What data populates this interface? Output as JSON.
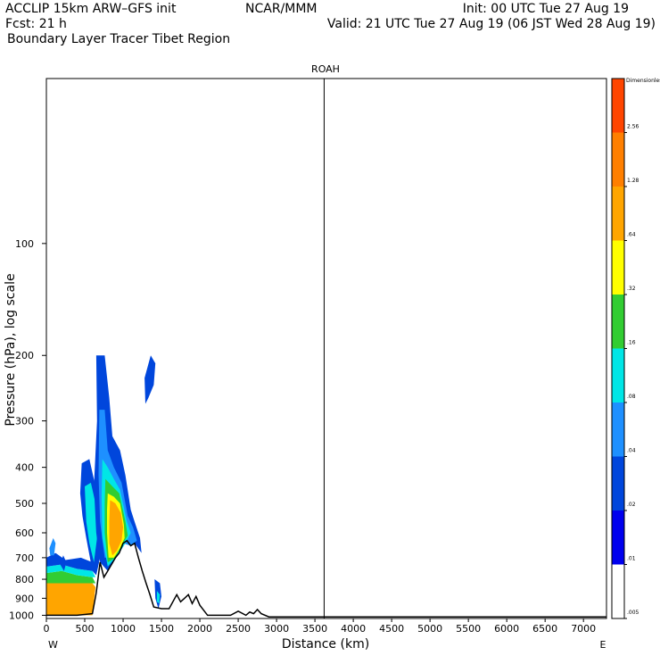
{
  "header": {
    "line1_left": "ACCLIP 15km ARW–GFS init",
    "line1_mid": "NCAR/MMM",
    "line1_right": "Init: 00 UTC Tue 27 Aug 19",
    "line2_left": "Fcst:    21 h",
    "line2_right": "Valid: 21 UTC Tue 27 Aug 19 (06 JST Wed 28 Aug 19)",
    "line3_left": "Boundary Layer Tracer  Tibet Region"
  },
  "chart_data": {
    "type": "heatmap",
    "title": "ROAH",
    "xlabel": "Distance (km)",
    "ylabel": "Pressure (hPa), log scale",
    "x_ticks": [
      "0",
      "500",
      "1000",
      "1500",
      "2000",
      "2500",
      "3000",
      "3500",
      "4000",
      "4500",
      "5000",
      "5500",
      "6000",
      "6500",
      "7000"
    ],
    "x_tick_values": [
      0,
      500,
      1000,
      1500,
      2000,
      2500,
      3000,
      3500,
      4000,
      4500,
      5000,
      5500,
      6000,
      6500,
      7000
    ],
    "y_ticks": [
      "100",
      "200",
      "300",
      "400",
      "500",
      "600",
      "700",
      "800",
      "900",
      "1000"
    ],
    "y_tick_values": [
      100,
      200,
      300,
      400,
      500,
      600,
      700,
      800,
      900,
      1000
    ],
    "xlim": [
      0,
      7300
    ],
    "ylim": [
      1020,
      36
    ],
    "y_scale": "log",
    "left_end_label": "W",
    "right_end_label": "E",
    "vertical_marker_km": 3620,
    "terrain": [
      [
        0,
        1000
      ],
      [
        400,
        1000
      ],
      [
        600,
        990
      ],
      [
        650,
        870
      ],
      [
        700,
        720
      ],
      [
        750,
        790
      ],
      [
        800,
        760
      ],
      [
        900,
        700
      ],
      [
        950,
        680
      ],
      [
        1000,
        640
      ],
      [
        1050,
        630
      ],
      [
        1100,
        650
      ],
      [
        1150,
        640
      ],
      [
        1200,
        700
      ],
      [
        1250,
        760
      ],
      [
        1300,
        820
      ],
      [
        1350,
        880
      ],
      [
        1400,
        950
      ],
      [
        1500,
        960
      ],
      [
        1600,
        960
      ],
      [
        1700,
        880
      ],
      [
        1750,
        920
      ],
      [
        1800,
        900
      ],
      [
        1850,
        880
      ],
      [
        1900,
        930
      ],
      [
        1950,
        890
      ],
      [
        2000,
        940
      ],
      [
        2100,
        1000
      ],
      [
        2400,
        1000
      ],
      [
        2500,
        975
      ],
      [
        2600,
        1000
      ],
      [
        2650,
        980
      ],
      [
        2700,
        990
      ],
      [
        2750,
        965
      ],
      [
        2800,
        990
      ],
      [
        2900,
        1010
      ],
      [
        3500,
        1010
      ],
      [
        4500,
        1010
      ],
      [
        7300,
        1010
      ]
    ],
    "colorbar": {
      "title": "Dimensionless",
      "labels": [
        ".005",
        ".01",
        ".02",
        ".04",
        ".08",
        ".16",
        ".32",
        ".64",
        "1.28",
        "2.56"
      ],
      "colors": [
        "#ffffff",
        "#0000ee",
        "#0046dc",
        "#1e90ff",
        "#00e6e6",
        "#32cd32",
        "#ffff00",
        "#ffa500",
        "#ff7f00",
        "#ff4500"
      ]
    },
    "tracer_patches": [
      {
        "level": 7,
        "points": [
          [
            0,
            820
          ],
          [
            600,
            820
          ],
          [
            640,
            840
          ],
          [
            600,
            1000
          ],
          [
            0,
            1000
          ]
        ]
      },
      {
        "level": 5,
        "points": [
          [
            0,
            770
          ],
          [
            200,
            760
          ],
          [
            400,
            780
          ],
          [
            600,
            790
          ],
          [
            640,
            820
          ],
          [
            600,
            820
          ],
          [
            0,
            820
          ]
        ]
      },
      {
        "level": 4,
        "points": [
          [
            0,
            740
          ],
          [
            200,
            730
          ],
          [
            400,
            750
          ],
          [
            600,
            760
          ],
          [
            640,
            790
          ],
          [
            600,
            790
          ],
          [
            400,
            780
          ],
          [
            200,
            760
          ],
          [
            0,
            770
          ]
        ]
      },
      {
        "level": 2,
        "points": [
          [
            0,
            700
          ],
          [
            120,
            680
          ],
          [
            250,
            710
          ],
          [
            450,
            700
          ],
          [
            600,
            720
          ],
          [
            650,
            760
          ],
          [
            600,
            760
          ],
          [
            400,
            750
          ],
          [
            200,
            730
          ],
          [
            0,
            740
          ]
        ]
      },
      {
        "level": 3,
        "points": [
          [
            40,
            660
          ],
          [
            90,
            620
          ],
          [
            120,
            640
          ],
          [
            100,
            690
          ],
          [
            50,
            690
          ]
        ]
      },
      {
        "level": 2,
        "points": [
          [
            180,
            730
          ],
          [
            220,
            690
          ],
          [
            260,
            720
          ],
          [
            230,
            760
          ]
        ]
      },
      {
        "level": 2,
        "points": [
          [
            460,
            390
          ],
          [
            560,
            380
          ],
          [
            640,
            450
          ],
          [
            660,
            600
          ],
          [
            700,
            700
          ],
          [
            650,
            780
          ],
          [
            600,
            760
          ],
          [
            520,
            620
          ],
          [
            470,
            540
          ],
          [
            440,
            470
          ]
        ]
      },
      {
        "level": 4,
        "points": [
          [
            500,
            450
          ],
          [
            580,
            440
          ],
          [
            640,
            500
          ],
          [
            660,
            620
          ],
          [
            620,
            720
          ],
          [
            560,
            640
          ],
          [
            520,
            560
          ]
        ]
      },
      {
        "level": 2,
        "points": [
          [
            650,
            200
          ],
          [
            760,
            200
          ],
          [
            820,
            260
          ],
          [
            860,
            330
          ],
          [
            960,
            360
          ],
          [
            1030,
            420
          ],
          [
            1100,
            520
          ],
          [
            1150,
            560
          ],
          [
            1220,
            620
          ],
          [
            1240,
            680
          ],
          [
            1150,
            640
          ],
          [
            1050,
            630
          ],
          [
            950,
            680
          ],
          [
            800,
            760
          ],
          [
            700,
            720
          ],
          [
            650,
            600
          ],
          [
            620,
            450
          ],
          [
            660,
            300
          ]
        ]
      },
      {
        "level": 3,
        "points": [
          [
            690,
            280
          ],
          [
            760,
            280
          ],
          [
            800,
            360
          ],
          [
            880,
            400
          ],
          [
            980,
            440
          ],
          [
            1060,
            540
          ],
          [
            1130,
            580
          ],
          [
            1180,
            630
          ],
          [
            1100,
            650
          ],
          [
            1000,
            640
          ],
          [
            900,
            700
          ],
          [
            760,
            700
          ],
          [
            700,
            560
          ],
          [
            680,
            420
          ]
        ]
      },
      {
        "level": 4,
        "points": [
          [
            730,
            380
          ],
          [
            800,
            400
          ],
          [
            880,
            430
          ],
          [
            960,
            460
          ],
          [
            1050,
            560
          ],
          [
            1100,
            600
          ],
          [
            1050,
            630
          ],
          [
            950,
            680
          ],
          [
            800,
            740
          ],
          [
            730,
            620
          ],
          [
            720,
            480
          ]
        ]
      },
      {
        "level": 5,
        "points": [
          [
            770,
            430
          ],
          [
            860,
            450
          ],
          [
            950,
            470
          ],
          [
            1030,
            560
          ],
          [
            1060,
            610
          ],
          [
            1000,
            640
          ],
          [
            900,
            700
          ],
          [
            800,
            720
          ],
          [
            760,
            600
          ],
          [
            760,
            500
          ]
        ]
      },
      {
        "level": 6,
        "points": [
          [
            800,
            470
          ],
          [
            880,
            480
          ],
          [
            960,
            500
          ],
          [
            1010,
            570
          ],
          [
            1020,
            620
          ],
          [
            960,
            660
          ],
          [
            880,
            700
          ],
          [
            810,
            700
          ],
          [
            790,
            600
          ],
          [
            790,
            520
          ]
        ]
      },
      {
        "level": 7,
        "points": [
          [
            830,
            490
          ],
          [
            900,
            500
          ],
          [
            970,
            530
          ],
          [
            1000,
            580
          ],
          [
            980,
            630
          ],
          [
            920,
            670
          ],
          [
            860,
            690
          ],
          [
            820,
            640
          ],
          [
            820,
            560
          ]
        ]
      },
      {
        "level": 2,
        "points": [
          [
            1280,
            230
          ],
          [
            1360,
            200
          ],
          [
            1420,
            210
          ],
          [
            1400,
            240
          ],
          [
            1330,
            260
          ],
          [
            1290,
            270
          ]
        ]
      },
      {
        "level": 2,
        "points": [
          [
            1410,
            800
          ],
          [
            1480,
            820
          ],
          [
            1500,
            890
          ],
          [
            1460,
            960
          ],
          [
            1420,
            900
          ]
        ]
      },
      {
        "level": 4,
        "points": [
          [
            1440,
            860
          ],
          [
            1480,
            880
          ],
          [
            1470,
            930
          ],
          [
            1440,
            920
          ]
        ]
      }
    ]
  }
}
